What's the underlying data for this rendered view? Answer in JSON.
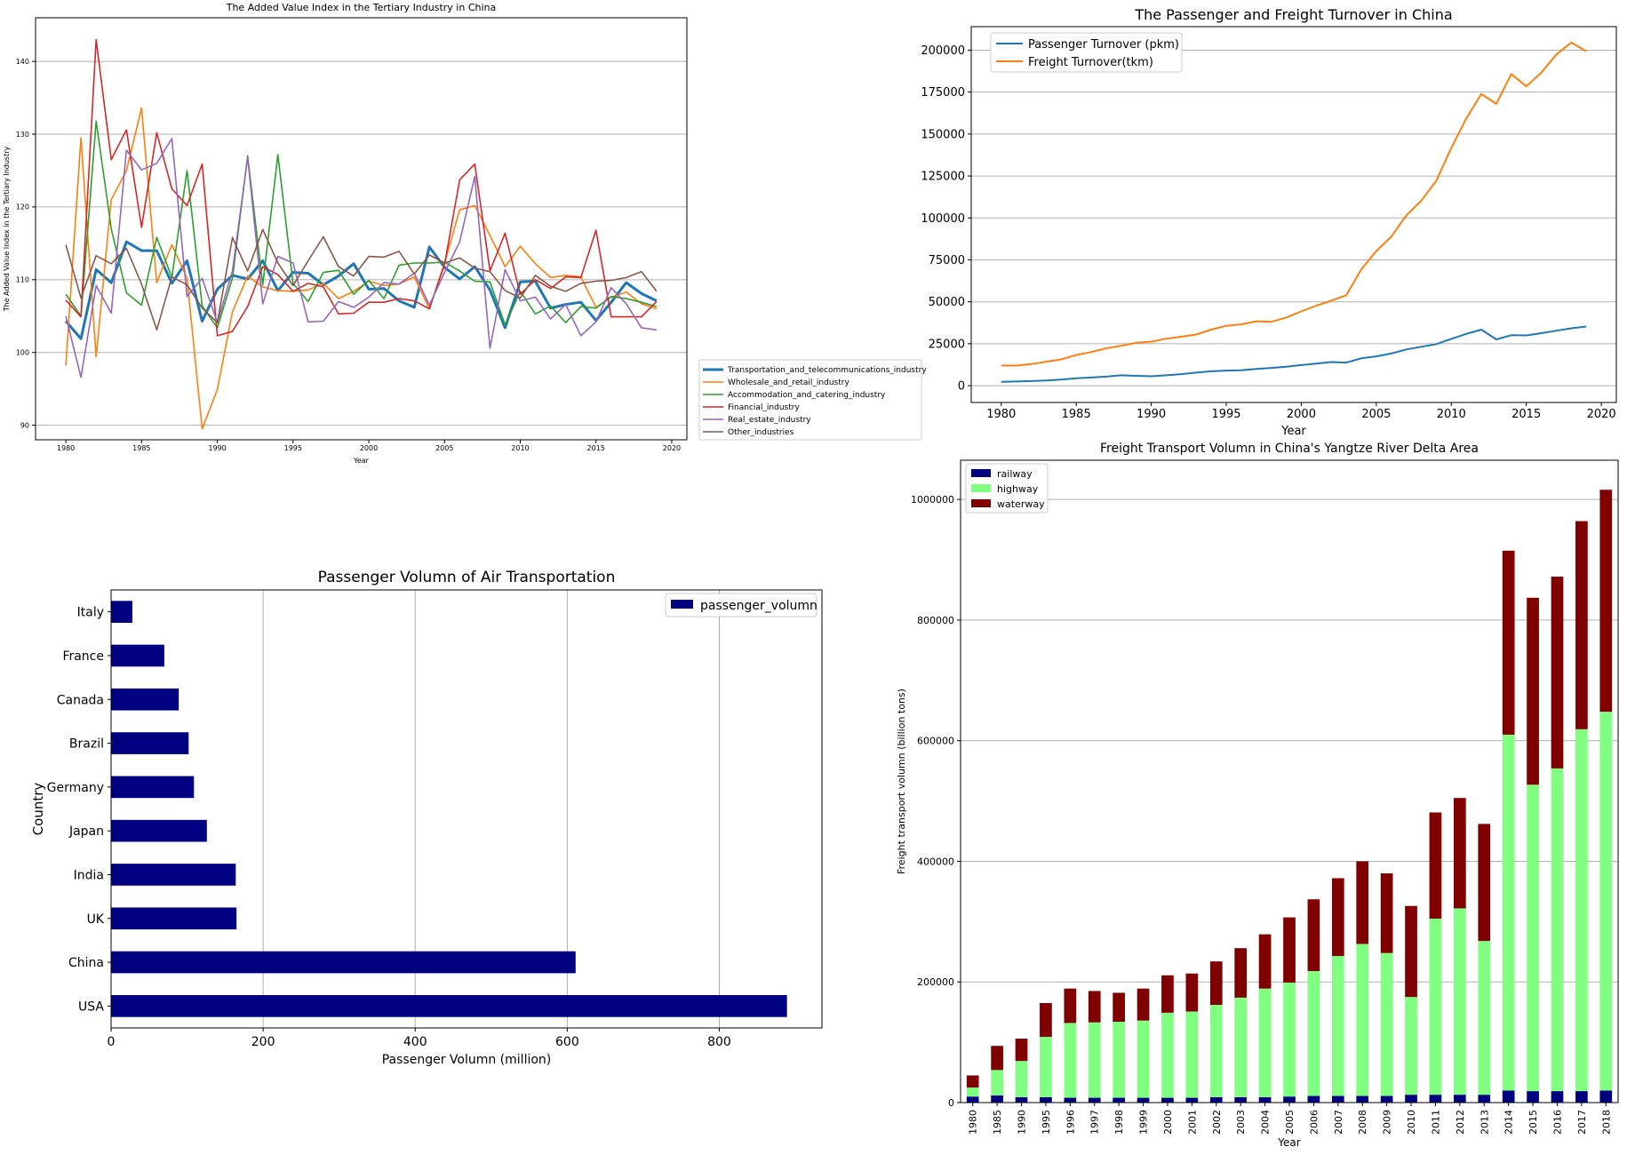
{
  "chart_data": [
    {
      "id": "tertiary",
      "type": "line",
      "title": "The Added Value Index in the Tertiary Industry in China",
      "xlabel": "Year",
      "ylabel": "The Added Value Index in the Tertiary Industry",
      "xlim": [
        1978,
        2021
      ],
      "ylim": [
        88,
        146
      ],
      "xticks": [
        1980,
        1985,
        1990,
        1995,
        2000,
        2005,
        2010,
        2015,
        2020
      ],
      "yticks": [
        90,
        100,
        110,
        120,
        130,
        140
      ],
      "grid": "y",
      "legend_position": "outside-right",
      "x": [
        1980,
        1981,
        1982,
        1983,
        1984,
        1985,
        1986,
        1987,
        1988,
        1989,
        1990,
        1991,
        1992,
        1993,
        1994,
        1995,
        1996,
        1997,
        1998,
        1999,
        2000,
        2001,
        2002,
        2003,
        2004,
        2005,
        2006,
        2007,
        2008,
        2009,
        2010,
        2011,
        2012,
        2013,
        2014,
        2015,
        2016,
        2017,
        2018,
        2019
      ],
      "series": [
        {
          "name": "Transportation_and_telecommunications_industry",
          "color": "#1f77b4",
          "width": 3,
          "values": [
            104.3,
            101.9,
            111.4,
            109.6,
            115.2,
            114.0,
            114.0,
            109.5,
            112.6,
            104.3,
            108.7,
            110.6,
            110.1,
            112.6,
            108.5,
            111.0,
            110.9,
            109.3,
            110.5,
            112.2,
            108.7,
            108.8,
            107.1,
            106.2,
            114.5,
            111.7,
            110.1,
            111.8,
            108.6,
            103.4,
            109.7,
            109.8,
            106.1,
            106.6,
            106.9,
            104.4,
            106.9,
            109.6,
            108.1,
            107.1
          ]
        },
        {
          "name": "Wholesale_and_retail_industry",
          "color": "#ff7f0e",
          "width": 1.6,
          "values": [
            98.2,
            129.5,
            99.4,
            121.0,
            125.0,
            133.6,
            109.6,
            114.8,
            110.2,
            89.5,
            94.9,
            105.6,
            110.5,
            109.0,
            108.5,
            108.4,
            108.6,
            109.5,
            107.4,
            108.4,
            109.8,
            109.2,
            109.4,
            110.4,
            106.0,
            112.3,
            119.6,
            120.2,
            116.1,
            111.8,
            114.6,
            112.2,
            110.3,
            110.6,
            110.4,
            106.2,
            107.6,
            108.3,
            106.7,
            106.0
          ]
        },
        {
          "name": "Accommodation_and_catering_industry",
          "color": "#2ca02c",
          "width": 1.6,
          "values": [
            108.0,
            105.0,
            131.8,
            117.0,
            108.2,
            106.5,
            115.8,
            110.3,
            125.0,
            106.4,
            103.4,
            110.2,
            127.0,
            109.3,
            127.2,
            109.5,
            107.0,
            111.0,
            111.3,
            108.0,
            109.9,
            107.4,
            112.0,
            112.3,
            112.3,
            112.4,
            111.2,
            109.8,
            109.7,
            103.8,
            108.4,
            105.3,
            106.4,
            104.1,
            106.3,
            106.1,
            107.7,
            107.4,
            106.9,
            106.3
          ]
        },
        {
          "name": "Financial_industry",
          "color": "#d62728",
          "width": 1.6,
          "values": [
            107.2,
            104.9,
            143.0,
            126.5,
            130.6,
            117.2,
            130.2,
            122.5,
            120.2,
            125.9,
            102.3,
            102.9,
            106.3,
            111.8,
            110.7,
            108.4,
            109.5,
            109.0,
            105.3,
            105.4,
            106.9,
            106.9,
            107.4,
            107.1,
            106.0,
            112.1,
            123.7,
            125.9,
            111.2,
            116.4,
            108.0,
            110.0,
            108.8,
            110.4,
            110.3,
            116.8,
            104.9,
            104.9,
            104.9,
            107.0
          ]
        },
        {
          "name": "Real_estate_industry",
          "color": "#9467bd",
          "width": 1.6,
          "values": [
            105.0,
            96.6,
            109.2,
            105.4,
            127.8,
            125.1,
            126.0,
            129.4,
            107.7,
            110.2,
            104.1,
            111.2,
            126.8,
            106.7,
            113.2,
            112.3,
            104.2,
            104.3,
            107.0,
            106.2,
            107.6,
            109.6,
            109.4,
            110.9,
            106.5,
            111.0,
            115.2,
            124.2,
            100.6,
            111.4,
            107.1,
            107.6,
            104.6,
            106.6,
            102.3,
            104.2,
            108.9,
            106.7,
            103.4,
            103.1
          ]
        },
        {
          "name": "Other_industries",
          "color": "#8c564b",
          "width": 1.6,
          "values": [
            114.8,
            107.5,
            113.3,
            112.2,
            114.3,
            109.4,
            103.1,
            110.4,
            109.3,
            106.1,
            104.1,
            115.8,
            111.2,
            116.9,
            112.3,
            109.2,
            112.6,
            115.9,
            111.8,
            110.5,
            113.2,
            113.1,
            113.9,
            110.8,
            113.4,
            112.3,
            113.0,
            111.6,
            111.1,
            108.5,
            107.5,
            110.6,
            109.1,
            108.4,
            109.5,
            109.8,
            109.9,
            110.3,
            111.1,
            108.4
          ]
        }
      ]
    },
    {
      "id": "turnover",
      "type": "line",
      "title": "The Passenger and Freight Turnover in China",
      "xlabel": "Year",
      "ylabel": "",
      "xlim": [
        1978,
        2021
      ],
      "ylim": [
        -10000,
        214000
      ],
      "xticks": [
        1980,
        1985,
        1990,
        1995,
        2000,
        2005,
        2010,
        2015,
        2020
      ],
      "yticks": [
        0,
        25000,
        50000,
        75000,
        100000,
        125000,
        150000,
        175000,
        200000
      ],
      "grid": "y",
      "legend_position": "top-left",
      "x": [
        1980,
        1981,
        1982,
        1983,
        1984,
        1985,
        1986,
        1987,
        1988,
        1989,
        1990,
        1991,
        1992,
        1993,
        1994,
        1995,
        1996,
        1997,
        1998,
        1999,
        2000,
        2001,
        2002,
        2003,
        2004,
        2005,
        2006,
        2007,
        2008,
        2009,
        2010,
        2011,
        2012,
        2013,
        2014,
        2015,
        2016,
        2017,
        2018,
        2019
      ],
      "series": [
        {
          "name": "Passenger Turnover (pkm)",
          "color": "#1f77b4",
          "values": [
            2300,
            2500,
            2750,
            3100,
            3600,
            4400,
            4900,
            5400,
            6200,
            5900,
            5600,
            6200,
            6900,
            7800,
            8600,
            9000,
            9200,
            10000,
            10600,
            11300,
            12300,
            13200,
            14100,
            13800,
            16300,
            17500,
            19200,
            21600,
            23200,
            24800,
            27900,
            30900,
            33400,
            27600,
            30100,
            30000,
            31300,
            32800,
            34200,
            35300
          ]
        },
        {
          "name": "Freight Turnover(tkm)",
          "color": "#ff7f0e",
          "values": [
            12000,
            12000,
            12900,
            14300,
            15700,
            18300,
            20100,
            22300,
            23800,
            25600,
            26200,
            28000,
            29200,
            30500,
            33400,
            35700,
            36600,
            38400,
            38100,
            40600,
            44300,
            47700,
            50700,
            53900,
            69400,
            80300,
            88800,
            101400,
            110300,
            122100,
            141800,
            159300,
            173800,
            168000,
            185800,
            178400,
            186600,
            197400,
            204500,
            199400
          ]
        }
      ]
    },
    {
      "id": "air",
      "type": "bar",
      "orientation": "horizontal",
      "title": "Passenger Volumn of Air Transportation",
      "xlabel": "Passenger Volumn (million)",
      "ylabel": "Country",
      "xlim": [
        0,
        935
      ],
      "xticks": [
        0,
        200,
        400,
        600,
        800
      ],
      "grid": "x",
      "legend_position": "top-right",
      "series_name": "passenger_volumn",
      "color": "#000080",
      "categories": [
        "USA",
        "China",
        "UK",
        "India",
        "Japan",
        "Germany",
        "Brazil",
        "Canada",
        "France",
        "Italy"
      ],
      "values": [
        889,
        611,
        165,
        164,
        126,
        109,
        102,
        89,
        70,
        28
      ]
    },
    {
      "id": "freight",
      "type": "bar",
      "stacked": true,
      "title": "Freight Transport Volumn in China's Yangtze River Delta Area",
      "xlabel": "Year",
      "ylabel": "Freight transport volumn (billion tons)",
      "ylim": [
        0,
        1065000
      ],
      "yticks": [
        0,
        200000,
        400000,
        600000,
        800000,
        1000000
      ],
      "grid": "y",
      "legend_position": "top-left",
      "categories": [
        "1980",
        "1985",
        "1990",
        "1995",
        "1996",
        "1997",
        "1998",
        "1999",
        "2000",
        "2001",
        "2002",
        "2003",
        "2004",
        "2005",
        "2006",
        "2007",
        "2008",
        "2009",
        "2010",
        "2011",
        "2012",
        "2013",
        "2014",
        "2015",
        "2016",
        "2017",
        "2018"
      ],
      "series": [
        {
          "name": "railway",
          "color": "#000080",
          "values": [
            10000,
            12000,
            9000,
            9000,
            8000,
            8000,
            8000,
            8000,
            8000,
            8000,
            9000,
            9000,
            9000,
            10000,
            11000,
            11000,
            11000,
            11000,
            13000,
            13000,
            13000,
            13000,
            20000,
            19000,
            19000,
            19000,
            20000
          ]
        },
        {
          "name": "highway",
          "color": "#80ff80",
          "values": [
            15000,
            42000,
            60000,
            100000,
            124000,
            125000,
            126000,
            128000,
            141000,
            143000,
            153000,
            165000,
            180000,
            189000,
            207000,
            232000,
            252000,
            237000,
            162000,
            292000,
            309000,
            255000,
            590000,
            508000,
            535000,
            600000,
            628000
          ]
        },
        {
          "name": "waterway",
          "color": "#800000",
          "values": [
            20000,
            40000,
            37000,
            56000,
            57000,
            52000,
            48000,
            53000,
            62000,
            63000,
            72000,
            82000,
            90000,
            108000,
            119000,
            129000,
            137000,
            132000,
            151000,
            176000,
            183000,
            194000,
            305000,
            310000,
            318000,
            345000,
            368000
          ]
        }
      ]
    }
  ]
}
